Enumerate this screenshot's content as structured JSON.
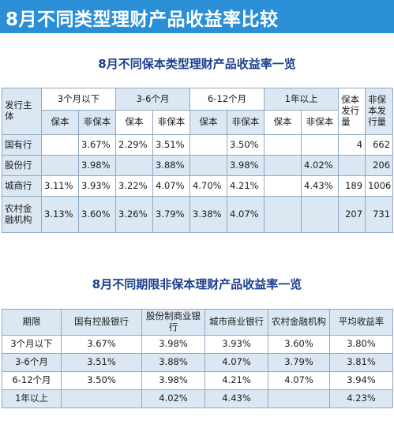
{
  "banner": {
    "title": "8月不同类型理财产品收益率比较"
  },
  "table1": {
    "title": "8月不同保本类型理财产品收益率一览",
    "issuer_header": "发行主体",
    "period_headers": [
      "3个月以下",
      "3-6个月",
      "6-12个月",
      "1年以上"
    ],
    "sub_headers": [
      "保本",
      "非保本"
    ],
    "count_headers": [
      "保本发行量",
      "非保本发行量"
    ],
    "rows": [
      {
        "issuer": "国有行",
        "cells": [
          "",
          "3.67%",
          "2.29%",
          "3.51%",
          "",
          "3.50%",
          "",
          ""
        ],
        "count_guaranteed": "4",
        "count_nonguaranteed": "662"
      },
      {
        "issuer": "股份行",
        "cells": [
          "",
          "3.98%",
          "",
          "3.88%",
          "",
          "3.98%",
          "",
          "4.02%"
        ],
        "count_guaranteed": "",
        "count_nonguaranteed": "206"
      },
      {
        "issuer": "城商行",
        "cells": [
          "3.11%",
          "3.93%",
          "3.22%",
          "4.07%",
          "4.70%",
          "4.21%",
          "",
          "4.43%"
        ],
        "count_guaranteed": "189",
        "count_nonguaranteed": "1006"
      },
      {
        "issuer": "农村金融机构",
        "cells": [
          "3.13%",
          "3.60%",
          "3.26%",
          "3.79%",
          "3.38%",
          "4.07%",
          "",
          ""
        ],
        "count_guaranteed": "207",
        "count_nonguaranteed": "731"
      }
    ]
  },
  "table2": {
    "title": "8月不同期限非保本理财产品收益率一览",
    "headers": [
      "期限",
      "国有控股银行",
      "股份制商业银行",
      "城市商业银行",
      "农村金融机构",
      "平均收益率"
    ],
    "rows": [
      [
        "3个月以下",
        "3.67%",
        "3.98%",
        "3.93%",
        "3.60%",
        "3.80%"
      ],
      [
        "3-6个月",
        "3.51%",
        "3.88%",
        "4.07%",
        "3.79%",
        "3.81%"
      ],
      [
        "6-12个月",
        "3.50%",
        "3.98%",
        "4.21%",
        "4.07%",
        "3.94%"
      ],
      [
        "1年以上",
        "",
        "4.02%",
        "4.43%",
        "",
        "4.23%"
      ]
    ]
  }
}
